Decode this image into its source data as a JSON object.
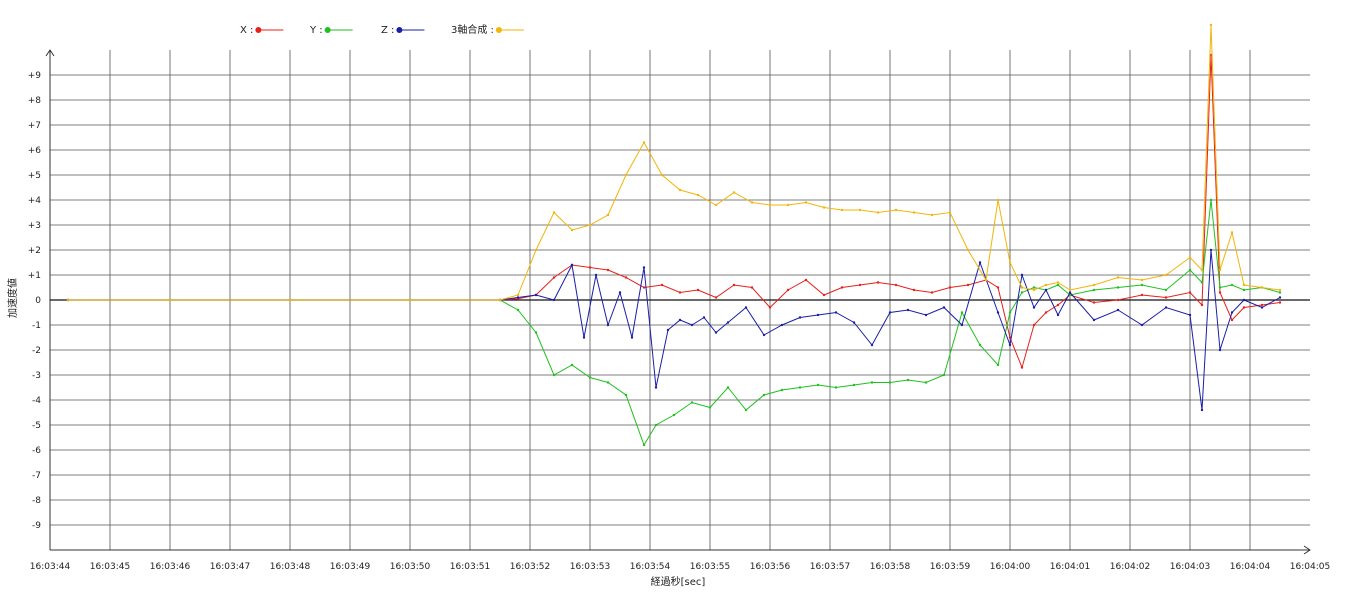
{
  "chart_data": {
    "type": "line",
    "xlabel": "経過秒[sec]",
    "ylabel": "加速度値",
    "x_ticks": [
      "16:03:44",
      "16:03:45",
      "16:03:46",
      "16:03:47",
      "16:03:48",
      "16:03:49",
      "16:03:50",
      "16:03:51",
      "16:03:52",
      "16:03:53",
      "16:03:54",
      "16:03:55",
      "16:03:56",
      "16:03:57",
      "16:03:58",
      "16:03:59",
      "16:04:00",
      "16:04:01",
      "16:04:02",
      "16:04:03",
      "16:04:04",
      "16:04:05"
    ],
    "y_ticks": [
      "+9",
      "+8",
      "+7",
      "+6",
      "+5",
      "+4",
      "+3",
      "+2",
      "+1",
      "0",
      "-1",
      "-2",
      "-3",
      "-4",
      "-5",
      "-6",
      "-7",
      "-8",
      "-9"
    ],
    "xlim_seconds": [
      0,
      21
    ],
    "ylim": [
      -10,
      10
    ],
    "grid": true,
    "legend_position": "top-left",
    "series": [
      {
        "name": "X",
        "legend_label": "X :",
        "color": "#e8201a",
        "x": [
          0.3,
          2,
          4,
          6,
          7.5,
          7.8,
          8.1,
          8.4,
          8.7,
          9.0,
          9.3,
          9.6,
          9.9,
          10.2,
          10.5,
          10.8,
          11.1,
          11.4,
          11.7,
          12.0,
          12.3,
          12.6,
          12.9,
          13.2,
          13.5,
          13.8,
          14.1,
          14.4,
          14.7,
          15.0,
          15.3,
          15.6,
          15.8,
          16.0,
          16.2,
          16.4,
          16.6,
          16.8,
          17.0,
          17.4,
          17.8,
          18.2,
          18.6,
          19.0,
          19.2,
          19.35,
          19.5,
          19.7,
          19.9,
          20.2,
          20.5
        ],
        "y": [
          0,
          0,
          0,
          0,
          0,
          0.05,
          0.2,
          0.9,
          1.4,
          1.3,
          1.2,
          0.9,
          0.5,
          0.6,
          0.3,
          0.4,
          0.1,
          0.6,
          0.5,
          -0.3,
          0.4,
          0.8,
          0.2,
          0.5,
          0.6,
          0.7,
          0.6,
          0.4,
          0.3,
          0.5,
          0.6,
          0.8,
          0.5,
          -1.5,
          -2.7,
          -1.0,
          -0.5,
          -0.2,
          0.2,
          -0.1,
          0.0,
          0.2,
          0.1,
          0.3,
          -0.2,
          9.8,
          0.3,
          -0.8,
          -0.3,
          -0.2,
          -0.1
        ]
      },
      {
        "name": "Y",
        "legend_label": "Y :",
        "color": "#1ec21e",
        "x": [
          0.3,
          2,
          4,
          6,
          7.5,
          7.8,
          8.1,
          8.4,
          8.7,
          9.0,
          9.3,
          9.6,
          9.9,
          10.1,
          10.4,
          10.7,
          11.0,
          11.3,
          11.6,
          11.9,
          12.2,
          12.5,
          12.8,
          13.1,
          13.4,
          13.7,
          14.0,
          14.3,
          14.6,
          14.9,
          15.2,
          15.5,
          15.8,
          16.0,
          16.2,
          16.4,
          16.6,
          16.8,
          17.0,
          17.4,
          17.8,
          18.2,
          18.6,
          19.0,
          19.2,
          19.35,
          19.5,
          19.7,
          19.9,
          20.2,
          20.5
        ],
        "y": [
          0,
          0,
          0,
          0,
          0,
          -0.4,
          -1.3,
          -3.0,
          -2.6,
          -3.1,
          -3.3,
          -3.8,
          -5.8,
          -5.0,
          -4.6,
          -4.1,
          -4.3,
          -3.5,
          -4.4,
          -3.8,
          -3.6,
          -3.5,
          -3.4,
          -3.5,
          -3.4,
          -3.3,
          -3.3,
          -3.2,
          -3.3,
          -3.0,
          -0.5,
          -1.8,
          -2.6,
          -0.5,
          0.3,
          0.5,
          0.4,
          0.6,
          0.2,
          0.4,
          0.5,
          0.6,
          0.4,
          1.2,
          0.7,
          4.0,
          0.5,
          0.6,
          0.4,
          0.5,
          0.3
        ]
      },
      {
        "name": "Z",
        "legend_label": "Z :",
        "color": "#1a1fa8",
        "x": [
          0.3,
          2,
          4,
          6,
          7.5,
          7.8,
          8.1,
          8.4,
          8.7,
          8.9,
          9.1,
          9.3,
          9.5,
          9.7,
          9.9,
          10.1,
          10.3,
          10.5,
          10.7,
          10.9,
          11.1,
          11.3,
          11.6,
          11.9,
          12.2,
          12.5,
          12.8,
          13.1,
          13.4,
          13.7,
          14.0,
          14.3,
          14.6,
          14.9,
          15.2,
          15.5,
          15.8,
          16.0,
          16.2,
          16.4,
          16.6,
          16.8,
          17.0,
          17.4,
          17.8,
          18.2,
          18.6,
          19.0,
          19.2,
          19.35,
          19.5,
          19.7,
          19.9,
          20.2,
          20.5
        ],
        "y": [
          0,
          0,
          0,
          0,
          0,
          0.1,
          0.2,
          0.0,
          1.4,
          -1.5,
          1.0,
          -1.0,
          0.3,
          -1.5,
          1.3,
          -3.5,
          -1.2,
          -0.8,
          -1.0,
          -0.7,
          -1.3,
          -0.9,
          -0.3,
          -1.4,
          -1.0,
          -0.7,
          -0.6,
          -0.5,
          -0.9,
          -1.8,
          -0.5,
          -0.4,
          -0.6,
          -0.3,
          -1.0,
          1.5,
          -0.5,
          -1.8,
          1.0,
          -0.3,
          0.4,
          -0.6,
          0.3,
          -0.8,
          -0.4,
          -1.0,
          -0.3,
          -0.6,
          -4.4,
          2.0,
          -2.0,
          -0.5,
          0.0,
          -0.3,
          0.1
        ]
      },
      {
        "name": "3軸合成",
        "legend_label": "3軸合成 :",
        "color": "#f2b50a",
        "x": [
          0.3,
          2,
          4,
          6,
          7.5,
          7.8,
          8.1,
          8.4,
          8.7,
          9.0,
          9.3,
          9.6,
          9.9,
          10.2,
          10.5,
          10.8,
          11.1,
          11.4,
          11.7,
          12.0,
          12.3,
          12.6,
          12.9,
          13.2,
          13.5,
          13.8,
          14.1,
          14.4,
          14.7,
          15.0,
          15.3,
          15.6,
          15.8,
          16.0,
          16.2,
          16.4,
          16.6,
          16.8,
          17.0,
          17.4,
          17.8,
          18.2,
          18.6,
          19.0,
          19.2,
          19.35,
          19.5,
          19.7,
          19.9,
          20.2,
          20.5
        ],
        "y": [
          0,
          0,
          0,
          0,
          0,
          0.2,
          2.0,
          3.5,
          2.8,
          3.0,
          3.4,
          5.0,
          6.3,
          5.0,
          4.4,
          4.2,
          3.8,
          4.3,
          3.9,
          3.8,
          3.8,
          3.9,
          3.7,
          3.6,
          3.6,
          3.5,
          3.6,
          3.5,
          3.4,
          3.5,
          2.0,
          0.8,
          4.0,
          1.5,
          0.5,
          0.4,
          0.6,
          0.7,
          0.4,
          0.6,
          0.9,
          0.8,
          1.0,
          1.7,
          1.2,
          11.0,
          1.2,
          2.7,
          0.6,
          0.5,
          0.4
        ]
      }
    ]
  }
}
